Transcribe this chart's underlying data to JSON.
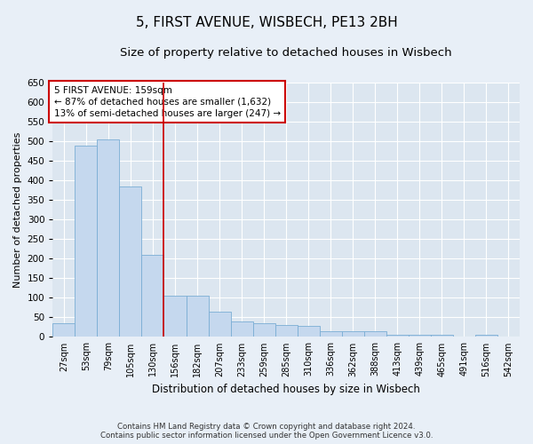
{
  "title1": "5, FIRST AVENUE, WISBECH, PE13 2BH",
  "title2": "Size of property relative to detached houses in Wisbech",
  "xlabel": "Distribution of detached houses by size in Wisbech",
  "ylabel": "Number of detached properties",
  "footer1": "Contains HM Land Registry data © Crown copyright and database right 2024.",
  "footer2": "Contains public sector information licensed under the Open Government Licence v3.0.",
  "annotation_line1": "5 FIRST AVENUE: 159sqm",
  "annotation_line2": "← 87% of detached houses are smaller (1,632)",
  "annotation_line3": "13% of semi-detached houses are larger (247) →",
  "categories": [
    "27sqm",
    "53sqm",
    "79sqm",
    "105sqm",
    "130sqm",
    "156sqm",
    "182sqm",
    "207sqm",
    "233sqm",
    "259sqm",
    "285sqm",
    "310sqm",
    "336sqm",
    "362sqm",
    "388sqm",
    "413sqm",
    "439sqm",
    "465sqm",
    "491sqm",
    "516sqm",
    "542sqm"
  ],
  "values": [
    35,
    490,
    505,
    385,
    210,
    105,
    105,
    65,
    40,
    35,
    30,
    28,
    15,
    14,
    14,
    5,
    5,
    5,
    2,
    5,
    2
  ],
  "bar_color": "#c5d8ee",
  "bar_edge_color": "#7aadd4",
  "vline_color": "#cc0000",
  "vline_x": 4.5,
  "annotation_box_color": "#cc0000",
  "ylim": [
    0,
    650
  ],
  "yticks": [
    0,
    50,
    100,
    150,
    200,
    250,
    300,
    350,
    400,
    450,
    500,
    550,
    600,
    650
  ],
  "bg_color": "#dce6f0",
  "fig_bg_color": "#e8eff7",
  "grid_color": "#ffffff",
  "title1_fontsize": 11,
  "title2_fontsize": 9.5
}
